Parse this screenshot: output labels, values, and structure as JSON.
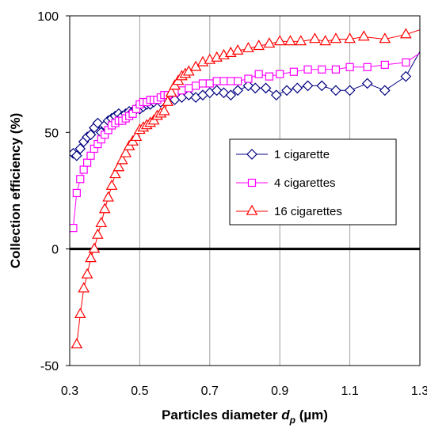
{
  "chart_data": {
    "type": "line",
    "xlabel": "Particles diameter",
    "xlabel_symbol": "d",
    "xlabel_subscript": "p",
    "xlabel_unit": "(µm)",
    "ylabel": "Collection efficiency  (%)",
    "xlim": [
      0.3,
      1.3
    ],
    "ylim": [
      -50,
      100
    ],
    "x_ticks": [
      "0.3",
      "0.5",
      "0.7",
      "0.9",
      "1.1",
      "1.3"
    ],
    "y_ticks": [
      "-50",
      "0",
      "50",
      "100"
    ],
    "grid": "vertical",
    "legend_position": "center-right",
    "series": [
      {
        "name": "1  cigarette",
        "color": "#000080",
        "marker": "diamond",
        "x": [
          0.31,
          0.32,
          0.33,
          0.34,
          0.35,
          0.36,
          0.37,
          0.38,
          0.39,
          0.4,
          0.41,
          0.42,
          0.43,
          0.44,
          0.45,
          0.46,
          0.47,
          0.48,
          0.49,
          0.5,
          0.51,
          0.52,
          0.53,
          0.54,
          0.56,
          0.58,
          0.6,
          0.62,
          0.64,
          0.66,
          0.68,
          0.7,
          0.72,
          0.74,
          0.76,
          0.78,
          0.81,
          0.83,
          0.86,
          0.89,
          0.92,
          0.95,
          0.98,
          1.02,
          1.06,
          1.1,
          1.15,
          1.2,
          1.26,
          1.32
        ],
        "y": [
          41,
          40,
          43,
          46,
          48,
          49,
          52,
          54,
          50,
          53,
          55,
          56,
          57,
          58,
          57,
          58,
          59,
          59,
          60,
          60,
          61,
          62,
          62,
          63,
          63,
          64,
          64,
          65,
          66,
          65,
          66,
          67,
          68,
          67,
          66,
          68,
          70,
          69,
          69,
          66,
          68,
          69,
          70,
          70,
          68,
          68,
          71,
          68,
          74,
          90
        ]
      },
      {
        "name": "4 cigarettes",
        "color": "#FF00FF",
        "marker": "square",
        "x": [
          0.31,
          0.32,
          0.33,
          0.34,
          0.35,
          0.36,
          0.37,
          0.38,
          0.39,
          0.4,
          0.41,
          0.42,
          0.43,
          0.44,
          0.45,
          0.46,
          0.47,
          0.48,
          0.49,
          0.5,
          0.51,
          0.52,
          0.53,
          0.54,
          0.55,
          0.56,
          0.57,
          0.58,
          0.6,
          0.62,
          0.64,
          0.66,
          0.68,
          0.7,
          0.72,
          0.74,
          0.76,
          0.78,
          0.81,
          0.84,
          0.87,
          0.9,
          0.94,
          0.98,
          1.02,
          1.06,
          1.1,
          1.15,
          1.2,
          1.26,
          1.32
        ],
        "y": [
          9,
          24,
          30,
          34,
          37,
          40,
          43,
          45,
          47,
          49,
          51,
          53,
          54,
          55,
          55,
          56,
          57,
          58,
          60,
          62,
          63,
          63,
          64,
          64,
          64,
          65,
          66,
          66,
          67,
          68,
          69,
          70,
          71,
          71,
          72,
          72,
          72,
          72,
          73,
          75,
          74,
          75,
          76,
          77,
          77,
          77,
          78,
          78,
          79,
          80,
          86
        ]
      },
      {
        "name": "16 cigarettes",
        "color": "#FF0000",
        "marker": "triangle",
        "x": [
          0.32,
          0.33,
          0.34,
          0.35,
          0.36,
          0.37,
          0.38,
          0.39,
          0.4,
          0.41,
          0.42,
          0.43,
          0.44,
          0.45,
          0.46,
          0.47,
          0.48,
          0.49,
          0.5,
          0.51,
          0.52,
          0.53,
          0.54,
          0.55,
          0.56,
          0.57,
          0.58,
          0.59,
          0.6,
          0.61,
          0.62,
          0.63,
          0.64,
          0.66,
          0.68,
          0.7,
          0.72,
          0.74,
          0.76,
          0.78,
          0.81,
          0.84,
          0.87,
          0.9,
          0.93,
          0.96,
          1.0,
          1.03,
          1.06,
          1.1,
          1.14,
          1.2,
          1.26,
          1.32
        ],
        "y": [
          -41,
          -28,
          -17,
          -11,
          -4,
          0,
          6,
          11,
          17,
          22,
          27,
          32,
          35,
          38,
          41,
          44,
          46,
          48,
          51,
          52,
          53,
          54,
          55,
          57,
          58,
          59,
          63,
          67,
          70,
          72,
          74,
          75,
          76,
          78,
          80,
          81,
          82,
          83,
          84,
          85,
          86,
          87,
          88,
          89,
          89,
          89,
          90,
          89,
          90,
          90,
          91,
          90,
          92,
          95
        ]
      }
    ]
  }
}
